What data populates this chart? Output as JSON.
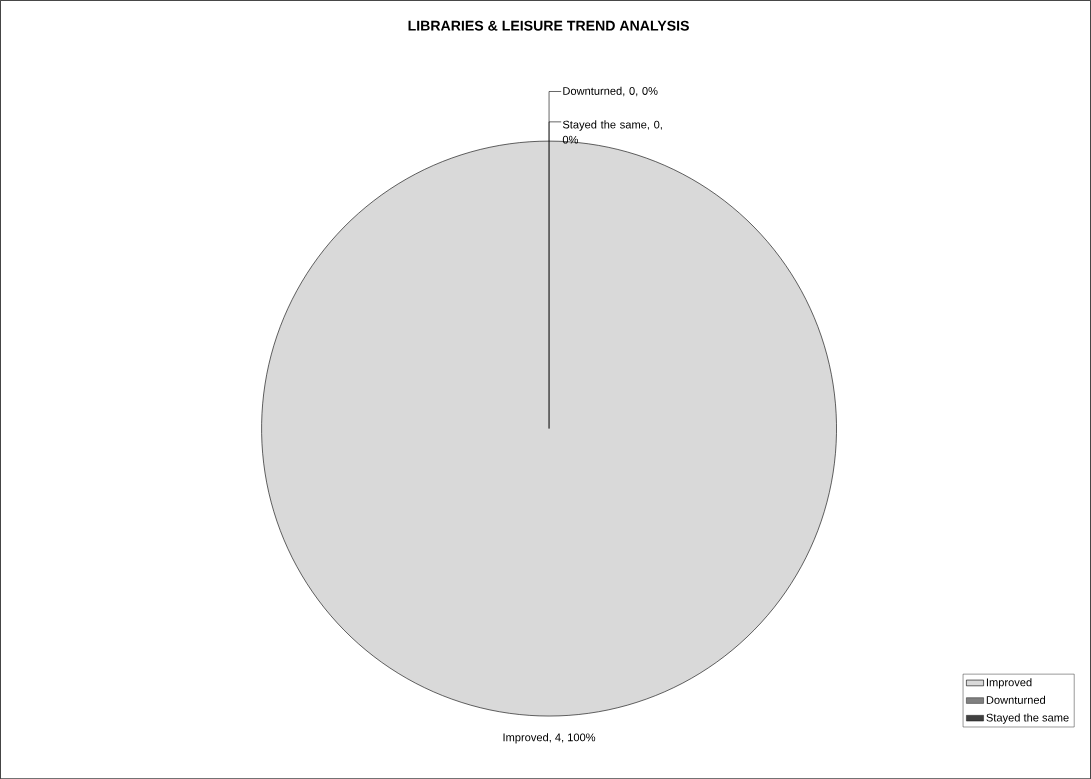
{
  "chart_data": {
    "type": "pie",
    "title": "LIBRARIES & LEISURE TREND ANALYSIS",
    "categories": [
      "Improved",
      "Downturned",
      "Stayed the same"
    ],
    "values": [
      4,
      0,
      0
    ],
    "colors": [
      "#d9d9d9",
      "#808080",
      "#404040"
    ],
    "value_labels": [
      "Improved, 4, 100%",
      "Downturned, 0, 0%",
      "Stayed the same, 0, 0%"
    ],
    "legend": "bottom right"
  }
}
